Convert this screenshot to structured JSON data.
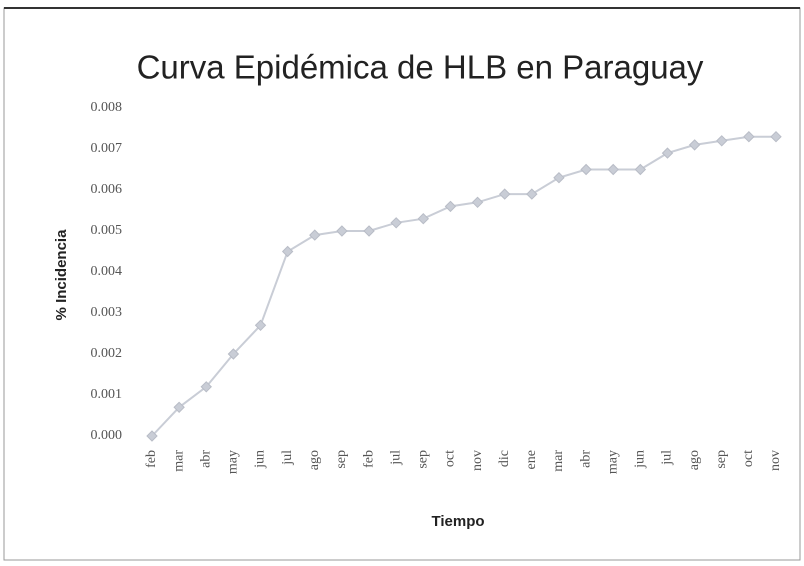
{
  "chart_data": {
    "type": "line",
    "title": "Curva Epidémica de HLB en Paraguay",
    "y_label": "% Incidencia",
    "x_label": "Tiempo",
    "categories": [
      "feb",
      "mar",
      "abr",
      "may",
      "jun",
      "jul",
      "ago",
      "sep",
      "feb",
      "jul",
      "sep",
      "oct",
      "nov",
      "dic",
      "ene",
      "mar",
      "abr",
      "may",
      "jun",
      "jul",
      "ago",
      "sep",
      "oct",
      "nov"
    ],
    "series": [
      {
        "name": "% Incidencia",
        "color": "#c9cdd6",
        "values": [
          0.0,
          0.0007,
          0.0012,
          0.002,
          0.0027,
          0.0045,
          0.0049,
          0.005,
          0.005,
          0.0052,
          0.0053,
          0.0056,
          0.0057,
          0.0059,
          0.0059,
          0.0063,
          0.0065,
          0.0065,
          0.0065,
          0.0069,
          0.0071,
          0.0072,
          0.0073,
          0.0073
        ]
      }
    ],
    "ylim": [
      0,
      0.008
    ],
    "yticks": [
      {
        "value": 0,
        "label": "0.000"
      },
      {
        "value": 0.001,
        "label": "0.001"
      },
      {
        "value": 0.002,
        "label": "0.002"
      },
      {
        "value": 0.003,
        "label": "0.003"
      },
      {
        "value": 0.004,
        "label": "0.004"
      },
      {
        "value": 0.005,
        "label": "0.005"
      },
      {
        "value": 0.006,
        "label": "0.006"
      },
      {
        "value": 0.007,
        "label": "0.007"
      },
      {
        "value": 0.008,
        "label": "0.008"
      }
    ],
    "grid": false
  }
}
